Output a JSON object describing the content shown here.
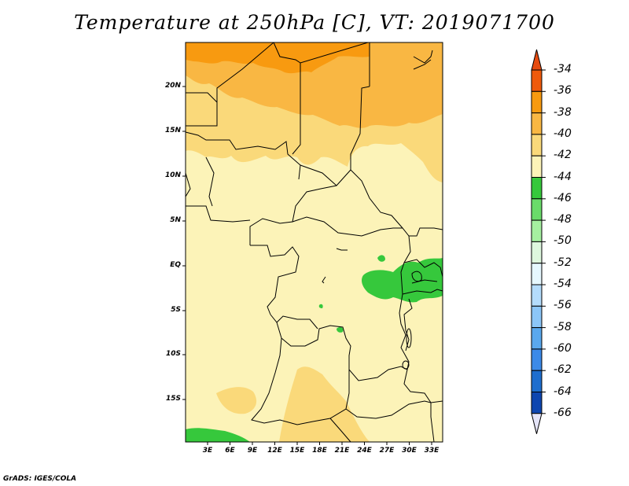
{
  "title": "Temperature at 250hPa [C], VT: 2019071700",
  "credit": "GrADS: IGES/COLA",
  "map": {
    "lat_labels": [
      "20N",
      "15N",
      "10N",
      "5N",
      "EQ",
      "5S",
      "10S",
      "15S"
    ],
    "lon_labels": [
      "3E",
      "6E",
      "9E",
      "12E",
      "15E",
      "18E",
      "21E",
      "24E",
      "27E",
      "30E",
      "33E"
    ]
  },
  "colorbar": {
    "labels": [
      "-34",
      "-36",
      "-38",
      "-40",
      "-42",
      "-44",
      "-46",
      "-48",
      "-50",
      "-52",
      "-54",
      "-56",
      "-58",
      "-60",
      "-62",
      "-64",
      "-66"
    ],
    "colors": [
      "#ef5a0c",
      "#f89a10",
      "#f9b743",
      "#fad97a",
      "#fcf3b8",
      "#36c83c",
      "#6adb6a",
      "#a5f0a0",
      "#def8de",
      "#e6f8ff",
      "#b4dcfc",
      "#8cc6f8",
      "#5aa8ee",
      "#3c8ae8",
      "#1e6ecf",
      "#0e46b0",
      "#0a1a78"
    ],
    "top_arrow_color": "#e64b10",
    "bottom_arrow_color": "#e4e4f8"
  },
  "field_colors": {
    "t42": "#fcf3b8",
    "t40": "#fad97a",
    "t38": "#f9b743",
    "t36": "#f89a10",
    "t44": "#36c83c",
    "t46": "#6adb6a"
  }
}
